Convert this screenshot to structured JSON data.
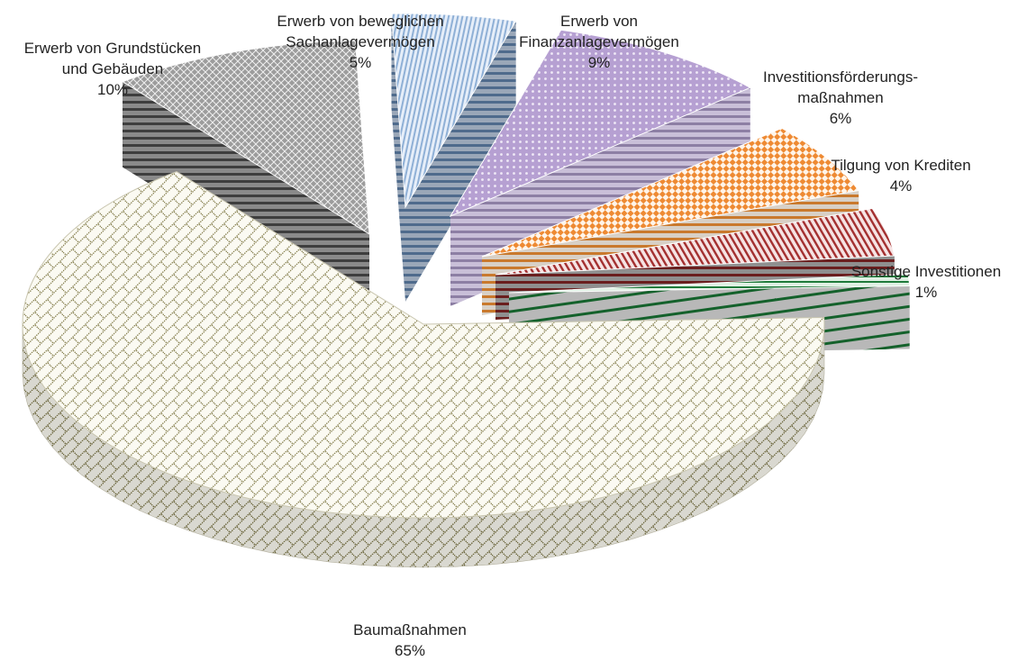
{
  "chart_data": {
    "type": "pie",
    "variant": "3d-exploded",
    "slices": [
      {
        "label": "Baumaßnahmen",
        "value_label": "65%",
        "value": 65,
        "color": "#d8d3b8",
        "pattern": "weave"
      },
      {
        "label": "Erwerb von Grundstücken und Gebäuden",
        "value_label": "10%",
        "value": 10,
        "color": "#6f6f6f",
        "pattern": "diamond"
      },
      {
        "label": "Erwerb von beweglichen Sachanlagevermögen",
        "value_label": "5%",
        "value": 5,
        "color": "#9db8d8",
        "pattern": "vstripes"
      },
      {
        "label": "Erwerb von Finanzanlagevermögen",
        "value_label": "9%",
        "value": 9,
        "color": "#b7a4d0",
        "pattern": "dots"
      },
      {
        "label": "Investitionsförderungs-maßnahmen",
        "value_label": "6%",
        "value": 6,
        "color": "#ee8a33",
        "pattern": "checker"
      },
      {
        "label": "Tilgung von Krediten",
        "value_label": "4%",
        "value": 4,
        "color": "#9e2a2a",
        "pattern": "diagonal"
      },
      {
        "label": "Sonstige Investitionen",
        "value_label": "1%",
        "value": 1,
        "color": "#1f7a3a",
        "pattern": "hstripes"
      }
    ],
    "labels": {
      "bau": {
        "l1": "Baumaßnahmen",
        "pct": "65%"
      },
      "grund": {
        "l1": "Erwerb von Grundstücken",
        "l2": "und Gebäuden",
        "pct": "10%"
      },
      "sach": {
        "l1": "Erwerb von beweglichen",
        "l2": "Sachanlagevermögen",
        "pct": "5%"
      },
      "finanz": {
        "l1": "Erwerb von",
        "l2": "Finanzanlagevermögen",
        "pct": "9%"
      },
      "invest": {
        "l1": "Investitionsförderungs-",
        "l2": "maßnahmen",
        "pct": "6%"
      },
      "tilgung": {
        "l1": "Tilgung von Krediten",
        "pct": "4%"
      },
      "sonst": {
        "l1": "Sonstige Investitionen",
        "pct": "1%"
      }
    }
  }
}
